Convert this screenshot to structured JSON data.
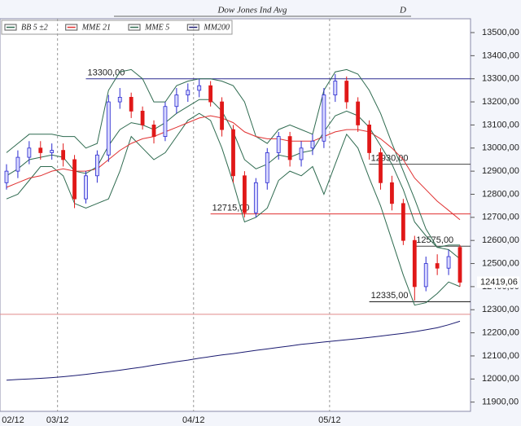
{
  "chart_data": {
    "type": "candlestick",
    "title": "Dow Jones Ind Avg",
    "period": "D",
    "categories": [
      "02/12",
      null,
      null,
      null,
      null,
      "03/12",
      null,
      null,
      null,
      null,
      null,
      null,
      null,
      null,
      null,
      null,
      null,
      "04/12",
      null,
      null,
      null,
      null,
      null,
      null,
      null,
      null,
      null,
      null,
      null,
      "05/12",
      null,
      null,
      null,
      null,
      null,
      null,
      null,
      null,
      null,
      null,
      null
    ],
    "candles": {
      "up_color": "#2a2ad0",
      "down_color": "#e01818",
      "open": [
        12850,
        12900,
        12960,
        13000,
        12980,
        12990,
        12950,
        12780,
        12880,
        12970,
        13200,
        13220,
        13160,
        13100,
        13050,
        13180,
        13230,
        13250,
        13270,
        13200,
        13080,
        12880,
        12720,
        12850,
        12980,
        13050,
        12950,
        13000,
        13030,
        13230,
        13290,
        13200,
        13100,
        12980,
        12850,
        12760,
        12600,
        12400,
        12500,
        12480,
        12570
      ],
      "high": [
        12930,
        12990,
        13030,
        13030,
        13020,
        13020,
        12970,
        12900,
        12990,
        13230,
        13260,
        13240,
        13180,
        13120,
        13200,
        13260,
        13280,
        13300,
        13290,
        13220,
        13100,
        12900,
        12870,
        13000,
        13070,
        13070,
        13030,
        13060,
        13260,
        13320,
        13310,
        13220,
        13120,
        13000,
        12880,
        12780,
        12620,
        12530,
        12540,
        12560,
        12580
      ],
      "low": [
        12820,
        12870,
        12930,
        12950,
        12950,
        12920,
        12740,
        12760,
        12850,
        12940,
        13170,
        13130,
        13080,
        13020,
        13030,
        13150,
        13200,
        13220,
        13180,
        13050,
        12850,
        12700,
        12700,
        12820,
        12950,
        12920,
        12920,
        12970,
        13000,
        13200,
        13170,
        13070,
        12950,
        12820,
        12730,
        12580,
        12340,
        12380,
        12450,
        12450,
        12400
      ],
      "close": [
        12900,
        12960,
        13000,
        12980,
        12990,
        12950,
        12780,
        12880,
        12970,
        13200,
        13220,
        13160,
        13100,
        13050,
        13180,
        13230,
        13250,
        13270,
        13200,
        13080,
        12880,
        12720,
        12850,
        12980,
        13050,
        12950,
        13000,
        13030,
        13230,
        13290,
        13200,
        13100,
        12980,
        12850,
        12760,
        12600,
        12400,
        12500,
        12480,
        12530,
        12419.06
      ]
    },
    "series": [
      {
        "name": "BB 5 ±2",
        "color": "#2f6b50",
        "upper": [
          12980,
          13020,
          13060,
          13060,
          13060,
          13050,
          13050,
          13000,
          13020,
          13250,
          13330,
          13340,
          13300,
          13200,
          13200,
          13270,
          13290,
          13300,
          13300,
          13290,
          13270,
          13200,
          13050,
          13020,
          13080,
          13100,
          13080,
          13060,
          13250,
          13330,
          13340,
          13320,
          13250,
          13150,
          13020,
          12900,
          12780,
          12650,
          12570,
          12580,
          12580
        ],
        "lower": [
          12780,
          12800,
          12860,
          12920,
          12920,
          12880,
          12760,
          12740,
          12760,
          12780,
          12900,
          13050,
          13000,
          12950,
          12980,
          13050,
          13120,
          13150,
          13120,
          13000,
          12850,
          12680,
          12700,
          12740,
          12860,
          12900,
          12880,
          12920,
          12800,
          12930,
          13060,
          13000,
          12870,
          12750,
          12600,
          12450,
          12320,
          12330,
          12370,
          12420,
          12400
        ]
      },
      {
        "name": "MME 21",
        "color": "#e03030",
        "values": [
          12830,
          12850,
          12870,
          12880,
          12900,
          12910,
          12900,
          12900,
          12910,
          12950,
          12990,
          13020,
          13040,
          13050,
          13070,
          13090,
          13110,
          13130,
          13140,
          13130,
          13110,
          13070,
          13050,
          13040,
          13040,
          13030,
          13030,
          13030,
          13050,
          13070,
          13080,
          13080,
          13070,
          13040,
          13000,
          12950,
          12870,
          12820,
          12770,
          12730,
          12690
        ]
      },
      {
        "name": "MME  5",
        "color": "#2f6b50",
        "values": [
          12880,
          12910,
          12950,
          12960,
          12970,
          12960,
          12900,
          12890,
          12920,
          13010,
          13080,
          13110,
          13100,
          13080,
          13110,
          13150,
          13180,
          13210,
          13210,
          13160,
          13070,
          12950,
          12910,
          12930,
          12970,
          12960,
          12980,
          12990,
          13070,
          13140,
          13160,
          13140,
          13090,
          13010,
          12930,
          12820,
          12680,
          12620,
          12570,
          12560,
          12520
        ]
      },
      {
        "name": "MM200",
        "color": "#1a1a70",
        "values": [
          11995,
          11998,
          12000,
          12003,
          12006,
          12010,
          12015,
          12020,
          12026,
          12032,
          12038,
          12045,
          12052,
          12060,
          12067,
          12075,
          12082,
          12090,
          12097,
          12104,
          12110,
          12117,
          12124,
          12130,
          12137,
          12143,
          12150,
          12155,
          12160,
          12165,
          12170,
          12175,
          12180,
          12186,
          12192,
          12198,
          12205,
          12213,
          12222,
          12235,
          12250
        ]
      }
    ],
    "levels": [
      {
        "value": 13300,
        "label": "13300,00",
        "color": "#2a2a90",
        "from": 7
      },
      {
        "value": 12930,
        "label": "12930,00",
        "color": "#444444",
        "from": 32
      },
      {
        "value": 12715,
        "label": "12715,00",
        "color": "#e03030",
        "from": 18
      },
      {
        "value": 12575,
        "label": "12575,00",
        "color": "#444444",
        "from": 36
      },
      {
        "value": 12335,
        "label": "12335,00",
        "color": "#111111",
        "from": 32
      },
      {
        "value": 12280,
        "color": "#e08a8a",
        "from": 0
      }
    ],
    "last_price": {
      "value": 12419.06,
      "label": "12419,06",
      "color": "#e01818"
    },
    "ylim": [
      11860,
      13560
    ],
    "yticks": [
      {
        "value": 11900,
        "label": "11900,00"
      },
      {
        "value": 12000,
        "label": "12000,00"
      },
      {
        "value": 12100,
        "label": "12100,00"
      },
      {
        "value": 12200,
        "label": "12200,00"
      },
      {
        "value": 12300,
        "label": "12300,00"
      },
      {
        "value": 12400,
        "label": "12400,00"
      },
      {
        "value": 12500,
        "label": "12500,00"
      },
      {
        "value": 12600,
        "label": "12600,00"
      },
      {
        "value": 12700,
        "label": "12700,00"
      },
      {
        "value": 12800,
        "label": "12800,00"
      },
      {
        "value": 12900,
        "label": "12900,00"
      },
      {
        "value": 13000,
        "label": "13000,00"
      },
      {
        "value": 13100,
        "label": "13100,00"
      },
      {
        "value": 13200,
        "label": "13200,00"
      },
      {
        "value": 13300,
        "label": "13300,00"
      },
      {
        "value": 13400,
        "label": "13400,00"
      },
      {
        "value": 13500,
        "label": "13500,00"
      }
    ]
  }
}
